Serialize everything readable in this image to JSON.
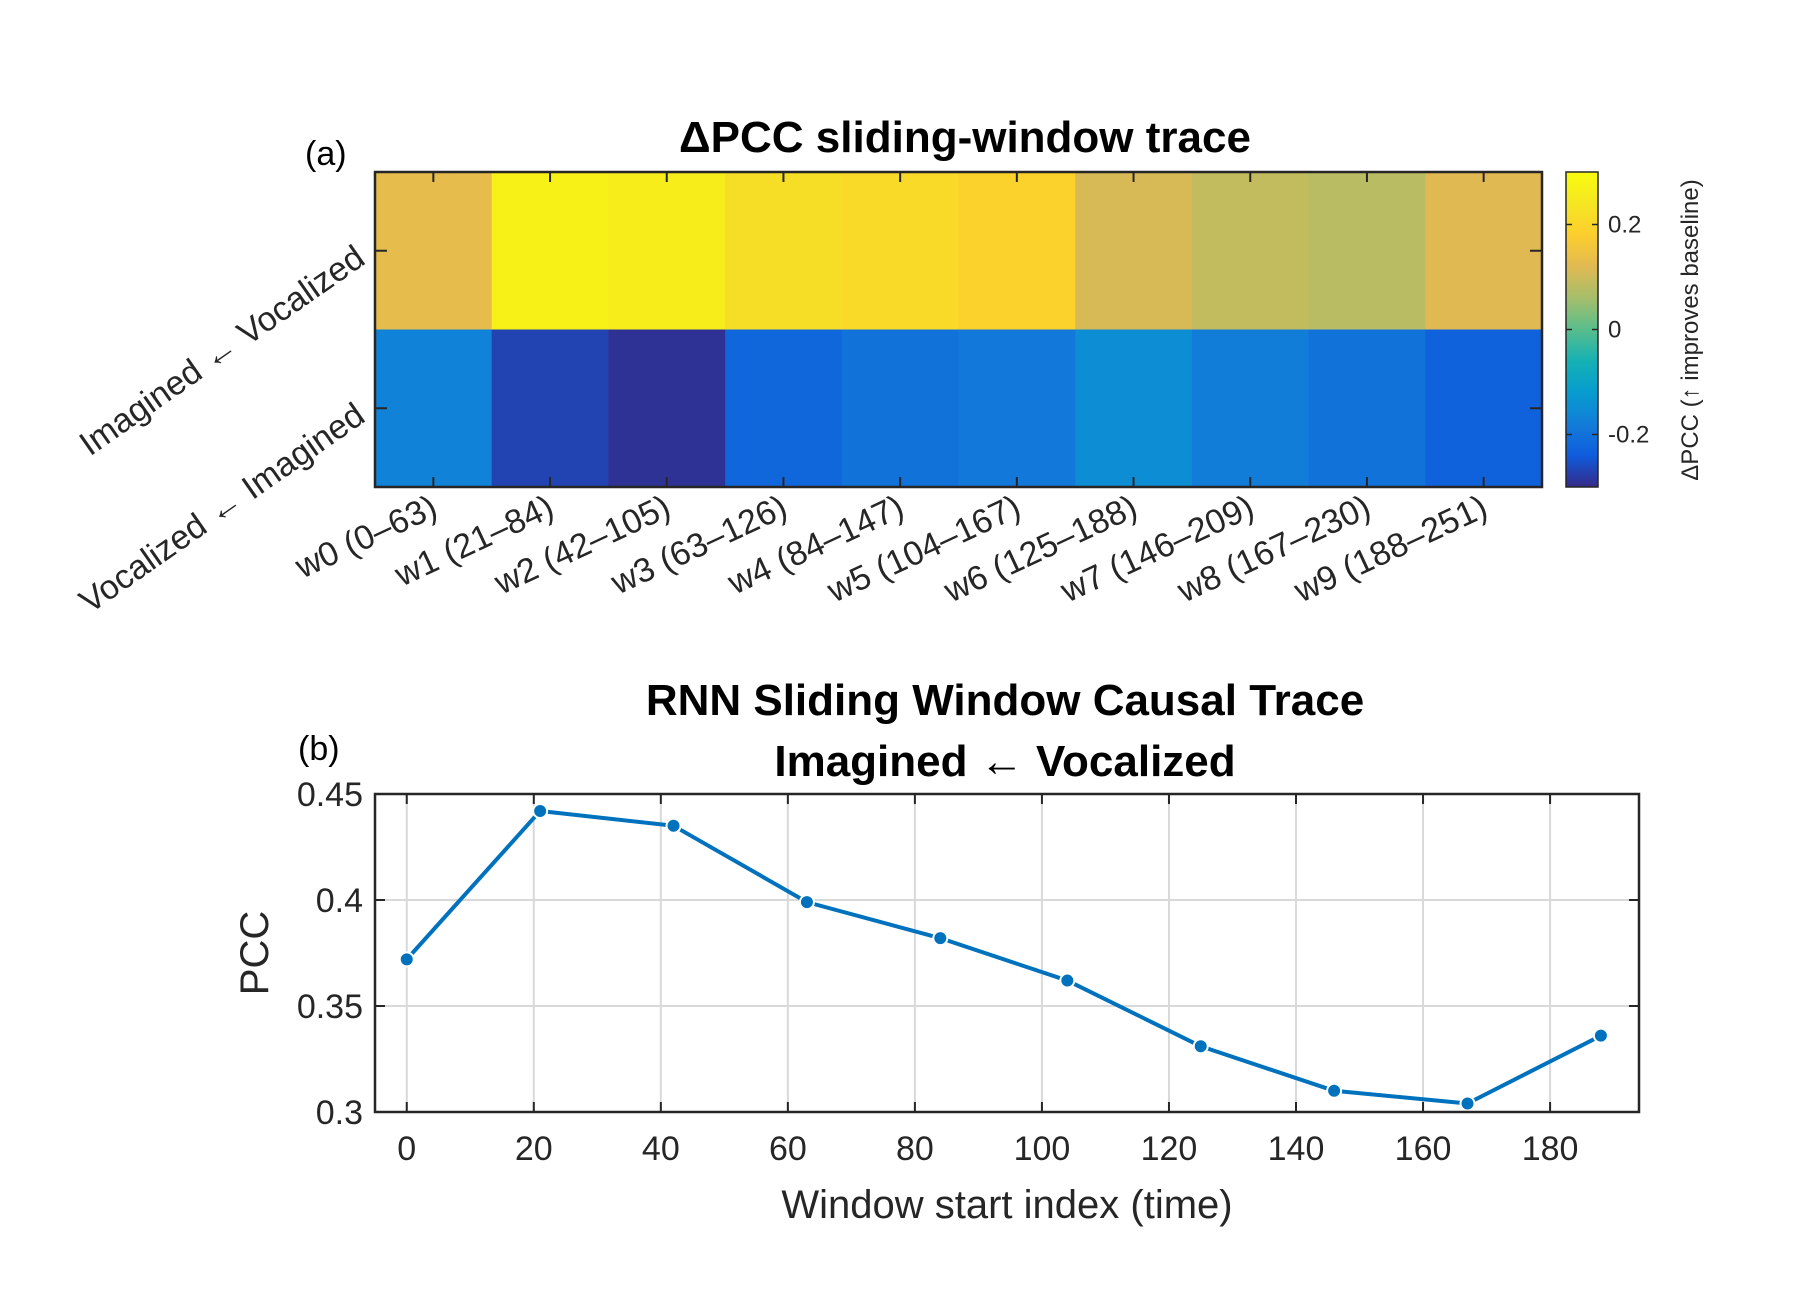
{
  "chart_data": [
    {
      "type": "heatmap",
      "panel_label": "(a)",
      "title": "ΔPCC sliding-window trace",
      "x_tick_labels": [
        "w0 (0–63)",
        "w1 (21–84)",
        "w2 (42–105)",
        "w3 (63–126)",
        "w4 (84–147)",
        "w5 (104–167)",
        "w6 (125–188)",
        "w7 (146–209)",
        "w8 (167–230)",
        "w9 (188–251)"
      ],
      "y_tick_labels": [
        "Imagined ← Vocalized",
        "Vocalized ← Imagined"
      ],
      "values": [
        [
          0.13,
          0.27,
          0.26,
          0.22,
          0.21,
          0.19,
          0.11,
          0.09,
          0.08,
          0.12
        ],
        [
          -0.17,
          -0.27,
          -0.29,
          -0.22,
          -0.2,
          -0.19,
          -0.15,
          -0.18,
          -0.2,
          -0.23
        ]
      ],
      "colorbar": {
        "label": "ΔPCC (↑ improves baseline)",
        "limits": [
          -0.3,
          0.3
        ],
        "ticks": [
          -0.2,
          0,
          0.2
        ],
        "tick_labels": [
          "-0.2",
          "0",
          "0.2"
        ],
        "colormap": "parula"
      }
    },
    {
      "type": "line",
      "panel_label": "(b)",
      "title": [
        "RNN Sliding Window Causal Trace",
        "Imagined ← Vocalized"
      ],
      "xlabel": "Window start index (time)",
      "ylabel": "PCC",
      "x": [
        0,
        21,
        42,
        63,
        84,
        104,
        125,
        146,
        167,
        188
      ],
      "y": [
        0.372,
        0.442,
        0.435,
        0.399,
        0.382,
        0.362,
        0.331,
        0.31,
        0.304,
        0.336
      ],
      "xlim": [
        -5,
        194
      ],
      "ylim": [
        0.3,
        0.45
      ],
      "x_ticks": [
        0,
        20,
        40,
        60,
        80,
        100,
        120,
        140,
        160,
        180
      ],
      "y_ticks": [
        0.3,
        0.35,
        0.4,
        0.45
      ],
      "y_tick_labels": [
        "0.3",
        "0.35",
        "0.4",
        "0.45"
      ],
      "grid": true,
      "color": "#0072BD"
    }
  ]
}
